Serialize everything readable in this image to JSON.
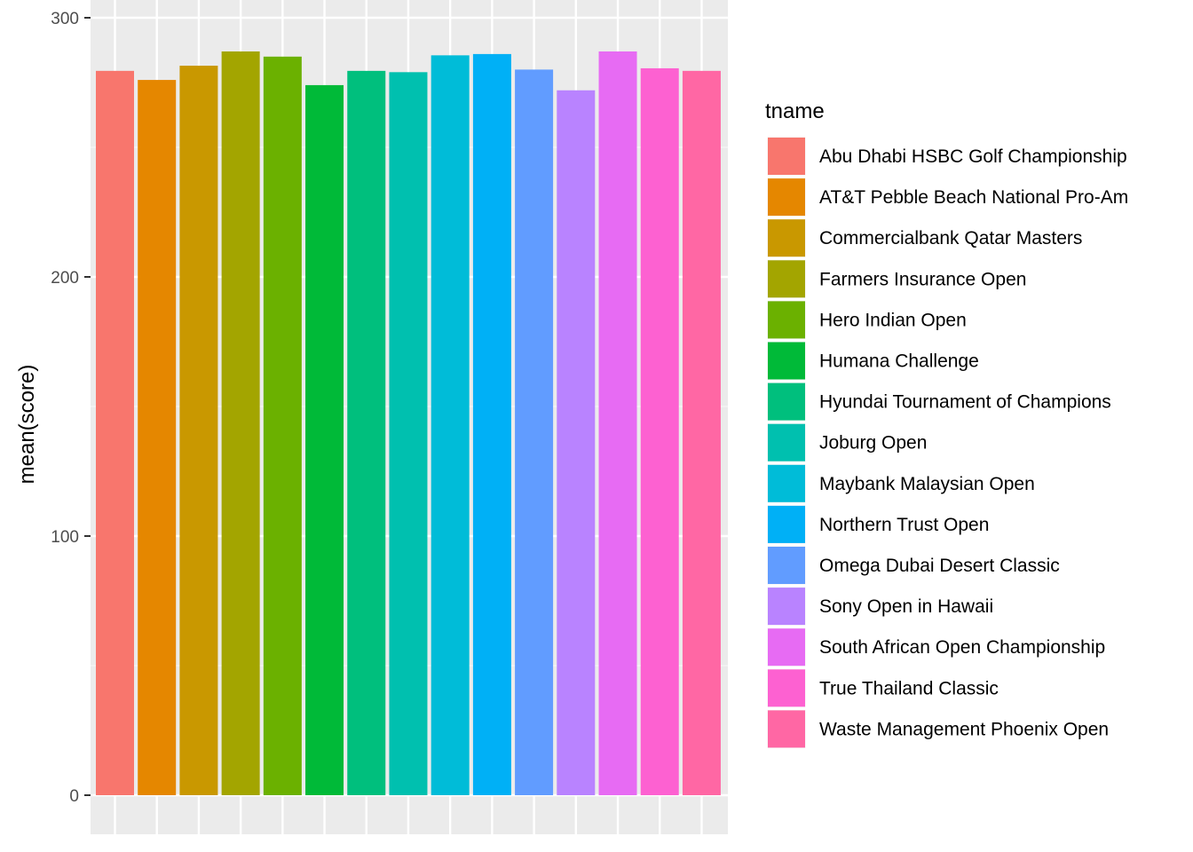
{
  "chart_data": {
    "type": "bar",
    "title": "",
    "xlabel": "",
    "ylabel": "mean(score)",
    "ylim": [
      0,
      315
    ],
    "y_ticks": [
      0,
      100,
      200,
      300
    ],
    "grid": true,
    "legend": {
      "title": "tname",
      "placement": "right"
    },
    "categories": [
      "Abu Dhabi HSBC Golf Championship",
      "AT&T Pebble Beach National Pro-Am",
      "Commercialbank Qatar Masters",
      "Farmers Insurance Open",
      "Hero Indian Open",
      "Humana Challenge",
      "Hyundai Tournament of Champions",
      "Joburg Open",
      "Maybank Malaysian Open",
      "Northern Trust Open",
      "Omega Dubai Desert Classic",
      "Sony Open in Hawaii",
      "South African Open Championship",
      "True Thailand Classic",
      "Waste Management Phoenix Open"
    ],
    "values": [
      279.5,
      276,
      281.5,
      287,
      285,
      274,
      279.5,
      279,
      285.5,
      286,
      280,
      272,
      287,
      280.5,
      279.5
    ],
    "colors": [
      "#F8766D",
      "#E58700",
      "#C99800",
      "#A3A500",
      "#6BB100",
      "#00BA38",
      "#00BF7D",
      "#00C0AF",
      "#00BCD8",
      "#00B0F6",
      "#619CFF",
      "#B983FF",
      "#E76BF3",
      "#FD61D1",
      "#FF67A4"
    ]
  }
}
